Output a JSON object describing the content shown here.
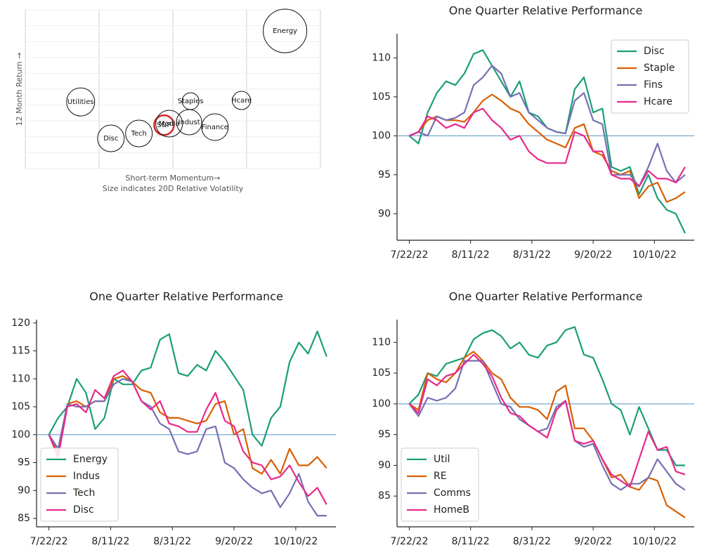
{
  "chart_data": [
    {
      "type": "bubble",
      "xlabel": "Short-term Momentum→",
      "xlabel2": "Size indicates 20D Relative Volatility",
      "ylabel": "12 Month Return →",
      "labels": [
        "Energy",
        "Utilities",
        "Disc",
        "Tech",
        "S&P",
        "Media",
        "Indust",
        "Staples",
        "Hcare",
        "Finance"
      ],
      "x": [
        3.52,
        0.75,
        1.16,
        1.54,
        1.88,
        1.95,
        2.22,
        2.24,
        2.93,
        2.57
      ],
      "y": [
        8.67,
        4.2,
        1.9,
        2.21,
        2.74,
        2.83,
        2.92,
        4.25,
        4.29,
        2.61
      ],
      "sizes": [
        31,
        20,
        19,
        19,
        14,
        19,
        18,
        12,
        13,
        19
      ],
      "edge_colors": [
        "#111111",
        "#111111",
        "#111111",
        "#111111",
        "#d62728",
        "#111111",
        "#111111",
        "#111111",
        "#111111",
        "#111111"
      ],
      "xlim": [
        0,
        4
      ],
      "ylim": [
        0,
        10
      ],
      "xticks": [
        0,
        1,
        2,
        3,
        4
      ],
      "yticks": [
        0,
        1,
        2,
        3,
        4,
        5,
        6,
        7,
        8,
        9,
        10
      ],
      "grid": true,
      "show_tick_labels": false
    },
    {
      "type": "line",
      "title": "One Quarter Relative Performance",
      "x": [
        "7/22/22",
        "7/25/22",
        "7/28/22",
        "7/31/22",
        "8/3/22",
        "8/6/22",
        "8/9/22",
        "8/12/22",
        "8/15/22",
        "8/18/22",
        "8/21/22",
        "8/24/22",
        "8/27/22",
        "8/30/22",
        "9/2/22",
        "9/5/22",
        "9/8/22",
        "9/11/22",
        "9/14/22",
        "9/17/22",
        "9/20/22",
        "9/23/22",
        "9/26/22",
        "9/29/22",
        "10/2/22",
        "10/5/22",
        "10/8/22",
        "10/11/22",
        "10/14/22",
        "10/17/22",
        "10/20/22"
      ],
      "series": [
        {
          "name": "Disc",
          "color": "#1b9e77",
          "values": [
            100,
            99,
            103,
            105.5,
            107,
            106.5,
            108,
            110.5,
            111,
            109,
            107,
            105,
            107,
            103,
            102.5,
            101,
            100.5,
            100.3,
            106,
            107.5,
            103,
            103.5,
            96,
            95.5,
            96,
            92.5,
            95,
            92,
            90.5,
            90,
            87.5
          ]
        },
        {
          "name": "Staple",
          "color": "#d95f02",
          "values": [
            100,
            100.5,
            102,
            102.5,
            102,
            102,
            101.8,
            103,
            104.5,
            105.3,
            104.5,
            103.5,
            103,
            101.5,
            100.5,
            99.5,
            99,
            98.5,
            101,
            101.5,
            98,
            97.5,
            95.5,
            95,
            95.5,
            92,
            93.5,
            94,
            91.5,
            92,
            92.8
          ]
        },
        {
          "name": "Fins",
          "color": "#7570b3",
          "values": [
            100,
            100.5,
            100,
            102.5,
            102,
            102.3,
            103,
            106.5,
            107.5,
            109,
            108,
            105,
            105.5,
            103,
            102,
            101,
            100.5,
            100.3,
            104.5,
            105.5,
            102,
            101.5,
            95,
            95,
            95,
            93.5,
            96,
            99,
            95.5,
            94,
            95
          ]
        },
        {
          "name": "Hcare",
          "color": "#e7298a",
          "values": [
            100,
            100.5,
            102.5,
            102,
            101,
            101.5,
            101,
            103,
            103.5,
            102,
            101,
            99.5,
            100,
            98,
            97,
            96.5,
            96.5,
            96.5,
            100.5,
            100,
            98,
            98,
            95,
            94.5,
            94.5,
            93.5,
            95.5,
            94.5,
            94.5,
            94,
            96
          ]
        }
      ],
      "xlim": [
        "7/18/22",
        "10/23/22"
      ],
      "xticks": [
        "7/22/22",
        "8/11/22",
        "8/31/22",
        "9/20/22",
        "10/10/22"
      ],
      "ylim": [
        86.6,
        113.1
      ],
      "yticks": [
        90,
        95,
        100,
        105,
        110
      ],
      "hline": 100,
      "hline_color": "#6a9ec5",
      "legend": "upper right"
    },
    {
      "type": "line",
      "title": "One Quarter Relative Performance",
      "x": [
        "7/22/22",
        "7/25/22",
        "7/28/22",
        "7/31/22",
        "8/3/22",
        "8/6/22",
        "8/9/22",
        "8/12/22",
        "8/15/22",
        "8/18/22",
        "8/21/22",
        "8/24/22",
        "8/27/22",
        "8/30/22",
        "9/2/22",
        "9/5/22",
        "9/8/22",
        "9/11/22",
        "9/14/22",
        "9/17/22",
        "9/20/22",
        "9/23/22",
        "9/26/22",
        "9/29/22",
        "10/2/22",
        "10/5/22",
        "10/8/22",
        "10/11/22",
        "10/14/22",
        "10/17/22",
        "10/20/22"
      ],
      "series": [
        {
          "name": "Energy",
          "color": "#1b9e77",
          "values": [
            100,
            103,
            105,
            110,
            107.5,
            101,
            103,
            110,
            109,
            109,
            111.5,
            112,
            117,
            118,
            111,
            110.5,
            112.5,
            111.5,
            115,
            113,
            110.5,
            108,
            100,
            98,
            103,
            105,
            113,
            116.5,
            114.5,
            118.5,
            114
          ]
        },
        {
          "name": "Indus",
          "color": "#d95f02",
          "values": [
            100,
            97,
            105.5,
            106,
            105,
            106,
            106,
            110,
            110.5,
            109.5,
            108,
            107.5,
            104,
            103,
            103,
            102.5,
            102,
            102.5,
            105.5,
            106,
            100,
            101,
            94,
            93,
            95.5,
            93,
            97.5,
            94.5,
            94.5,
            96,
            94
          ]
        },
        {
          "name": "Tech",
          "color": "#7570b3",
          "values": [
            100,
            97.5,
            105.5,
            105,
            105,
            106,
            106,
            109,
            110,
            109.5,
            106,
            105,
            102,
            101,
            97,
            96.5,
            97,
            101,
            101.5,
            95,
            94,
            92,
            90.5,
            89.5,
            90,
            87,
            89.5,
            93,
            88,
            85.5,
            85.5
          ]
        },
        {
          "name": "Disc",
          "color": "#e7298a",
          "values": [
            100,
            96,
            105,
            105.5,
            104,
            108,
            106.5,
            110.5,
            111.5,
            109.5,
            106,
            104.5,
            106,
            102,
            101.5,
            100.5,
            100.5,
            104.5,
            107.5,
            102.5,
            101.5,
            97,
            95,
            94.5,
            92,
            92.5,
            94.5,
            91.5,
            89,
            90.5,
            87.5
          ]
        }
      ],
      "xlim": [
        "7/18/22",
        "10/23/22"
      ],
      "xticks": [
        "7/22/22",
        "8/11/22",
        "8/31/22",
        "9/20/22",
        "10/10/22"
      ],
      "ylim": [
        83.5,
        120.6
      ],
      "yticks": [
        85,
        90,
        95,
        100,
        105,
        110,
        115,
        120
      ],
      "hline": 100,
      "hline_color": "#6a9ec5",
      "legend": "lower left"
    },
    {
      "type": "line",
      "title": "One Quarter Relative Performance",
      "x": [
        "7/22/22",
        "7/25/22",
        "7/28/22",
        "7/31/22",
        "8/3/22",
        "8/6/22",
        "8/9/22",
        "8/12/22",
        "8/15/22",
        "8/18/22",
        "8/21/22",
        "8/24/22",
        "8/27/22",
        "8/30/22",
        "9/2/22",
        "9/5/22",
        "9/8/22",
        "9/11/22",
        "9/14/22",
        "9/17/22",
        "9/20/22",
        "9/23/22",
        "9/26/22",
        "9/29/22",
        "10/2/22",
        "10/5/22",
        "10/8/22",
        "10/11/22",
        "10/14/22",
        "10/17/22",
        "10/20/22"
      ],
      "series": [
        {
          "name": "Util",
          "color": "#1b9e77",
          "values": [
            100,
            101.5,
            105,
            104.5,
            106.5,
            107,
            107.5,
            110.5,
            111.5,
            112,
            111,
            109,
            110,
            108,
            107.5,
            109.5,
            110,
            112,
            112.5,
            108,
            107.5,
            104,
            100,
            99,
            95,
            99.5,
            96,
            92.5,
            92.5,
            90,
            90
          ]
        },
        {
          "name": "RE",
          "color": "#d95f02",
          "values": [
            100,
            99,
            105,
            104,
            103.5,
            105,
            107.5,
            108.5,
            107,
            105,
            104,
            101,
            99.5,
            99.5,
            99,
            97.5,
            102,
            103,
            96,
            96,
            94,
            91,
            88,
            88.5,
            86.5,
            86,
            88,
            87.5,
            83.5,
            82.5,
            81.5
          ]
        },
        {
          "name": "Comms",
          "color": "#7570b3",
          "values": [
            100,
            98,
            101,
            100.5,
            101,
            102.5,
            107,
            107,
            107,
            103.5,
            100,
            99.5,
            97.5,
            96.5,
            95.5,
            96,
            99.5,
            100.5,
            94,
            93,
            93.5,
            90,
            87,
            86,
            87,
            87,
            88,
            91,
            89,
            87,
            86
          ]
        },
        {
          "name": "HomeB",
          "color": "#e7298a",
          "values": [
            100,
            98.5,
            104,
            103,
            104.5,
            105,
            106.5,
            108,
            106.5,
            104.5,
            101,
            98.5,
            98,
            96.5,
            95.5,
            94.5,
            99,
            100.5,
            94,
            93.5,
            94,
            91,
            88.5,
            87.5,
            86.5,
            91,
            95.5,
            92.5,
            93,
            89,
            88.5
          ]
        }
      ],
      "xlim": [
        "7/18/22",
        "10/23/22"
      ],
      "xticks": [
        "7/22/22",
        "8/11/22",
        "8/31/22",
        "9/20/22",
        "10/10/22"
      ],
      "ylim": [
        80.0,
        113.7
      ],
      "yticks": [
        85,
        90,
        95,
        100,
        105,
        110
      ],
      "hline": 100,
      "hline_color": "#6a9ec5",
      "legend": "lower left"
    }
  ]
}
